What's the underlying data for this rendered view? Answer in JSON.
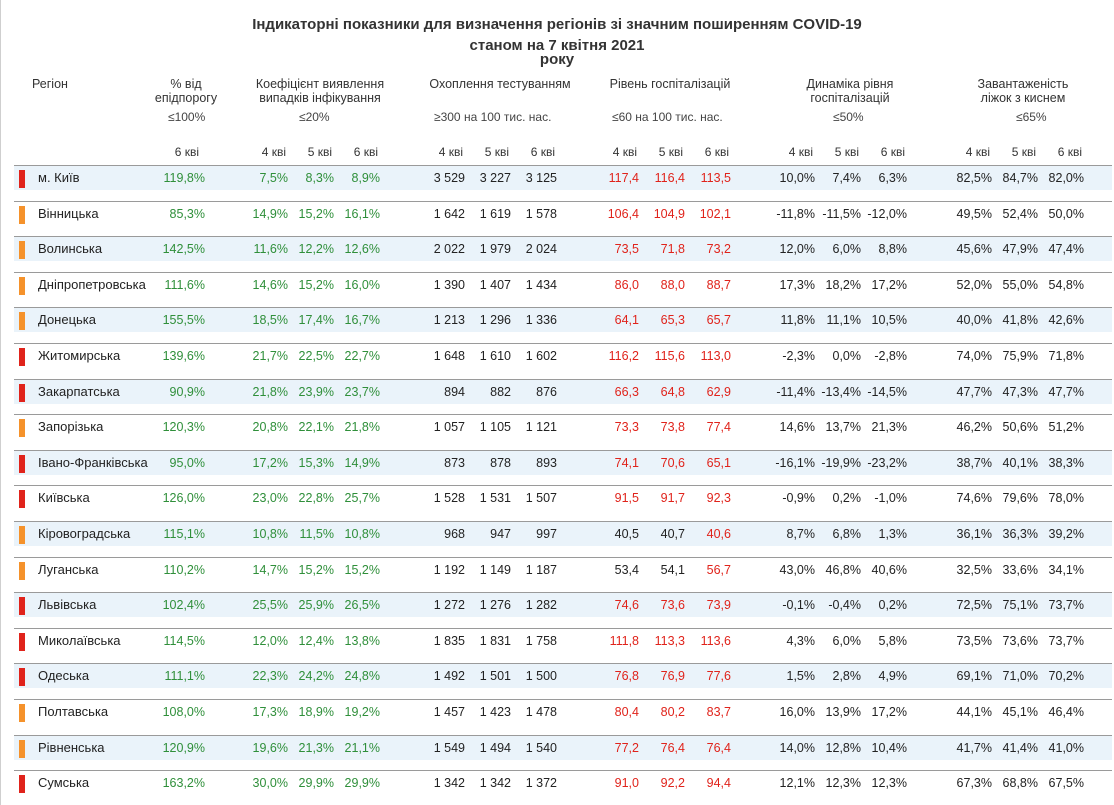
{
  "title": {
    "line1": "Індикаторні показники для визначення регіонів зі значним поширенням COVID-19",
    "line2": "станом на 7 квітня 2021",
    "line3": "року"
  },
  "colors": {
    "red": "#e0231b",
    "orange": "#f5922b",
    "green": "#2f8f3a",
    "dark": "#222222",
    "tint": "#eaf3fa",
    "hosp_ok": "#222222",
    "hosp_over": "#e0231b"
  },
  "header": {
    "region": "Регіон",
    "col_pct": {
      "l1": "% від",
      "l2": "епідпорогу",
      "threshold": "≤100%",
      "sub": [
        "6 кві"
      ]
    },
    "col_detect": {
      "l1": "Коефіцієнт виявлення",
      "l2": "випадків інфікування",
      "threshold": "≤20%",
      "sub": [
        "4 кві",
        "5 кві",
        "6 кві"
      ]
    },
    "col_test": {
      "l1": "Охоплення тестуванням",
      "l2": "",
      "threshold": "≥300 на 100 тис. нас.",
      "sub": [
        "4 кві",
        "5 кві",
        "6 кві"
      ]
    },
    "col_hosp": {
      "l1": "Рівень госпіталізацій",
      "l2": "",
      "threshold": "≤60 на 100 тис. нас.",
      "sub": [
        "4 кві",
        "5 кві",
        "6 кві"
      ]
    },
    "col_dyn": {
      "l1": "Динаміка рівня",
      "l2": "госпіталізацій",
      "threshold": "≤50%",
      "sub": [
        "4 кві",
        "5 кві",
        "6 кві"
      ]
    },
    "col_beds": {
      "l1": "Завантаженість",
      "l2": "ліжок з киснем",
      "threshold": "≤65%",
      "sub": [
        "4 кві",
        "5 кві",
        "6 кві"
      ]
    }
  },
  "chart_data": {
    "type": "table",
    "title": "Індикаторні показники для визначення регіонів зі значним поширенням COVID-19 станом на 7 квітня 2021 року",
    "rows": [
      {
        "region": "м. Київ",
        "marker": "red",
        "pct": "119,8%",
        "detect": [
          "7,5%",
          "8,3%",
          "8,9%"
        ],
        "test": [
          "3 529",
          "3 227",
          "3 125"
        ],
        "hosp": [
          "117,4",
          "116,4",
          "113,5"
        ],
        "hosp_over": [
          true,
          true,
          true
        ],
        "dyn": [
          "10,0%",
          "7,4%",
          "6,3%"
        ],
        "beds": [
          "82,5%",
          "84,7%",
          "82,0%"
        ]
      },
      {
        "region": "Вінницька",
        "marker": "orange",
        "pct": "85,3%",
        "detect": [
          "14,9%",
          "15,2%",
          "16,1%"
        ],
        "test": [
          "1 642",
          "1 619",
          "1 578"
        ],
        "hosp": [
          "106,4",
          "104,9",
          "102,1"
        ],
        "hosp_over": [
          true,
          true,
          true
        ],
        "dyn": [
          "-11,8%",
          "-11,5%",
          "-12,0%"
        ],
        "beds": [
          "49,5%",
          "52,4%",
          "50,0%"
        ]
      },
      {
        "region": "Волинська",
        "marker": "orange",
        "pct": "142,5%",
        "detect": [
          "11,6%",
          "12,2%",
          "12,6%"
        ],
        "test": [
          "2 022",
          "1 979",
          "2 024"
        ],
        "hosp": [
          "73,5",
          "71,8",
          "73,2"
        ],
        "hosp_over": [
          true,
          true,
          true
        ],
        "dyn": [
          "12,0%",
          "6,0%",
          "8,8%"
        ],
        "beds": [
          "45,6%",
          "47,9%",
          "47,4%"
        ]
      },
      {
        "region": "Дніпропетровська",
        "marker": "orange",
        "pct": "111,6%",
        "detect": [
          "14,6%",
          "15,2%",
          "16,0%"
        ],
        "test": [
          "1 390",
          "1 407",
          "1 434"
        ],
        "hosp": [
          "86,0",
          "88,0",
          "88,7"
        ],
        "hosp_over": [
          true,
          true,
          true
        ],
        "dyn": [
          "17,3%",
          "18,2%",
          "17,2%"
        ],
        "beds": [
          "52,0%",
          "55,0%",
          "54,8%"
        ]
      },
      {
        "region": "Донецька",
        "marker": "orange",
        "pct": "155,5%",
        "detect": [
          "18,5%",
          "17,4%",
          "16,7%"
        ],
        "test": [
          "1 213",
          "1 296",
          "1 336"
        ],
        "hosp": [
          "64,1",
          "65,3",
          "65,7"
        ],
        "hosp_over": [
          true,
          true,
          true
        ],
        "dyn": [
          "11,8%",
          "11,1%",
          "10,5%"
        ],
        "beds": [
          "40,0%",
          "41,8%",
          "42,6%"
        ]
      },
      {
        "region": "Житомирська",
        "marker": "red",
        "pct": "139,6%",
        "detect": [
          "21,7%",
          "22,5%",
          "22,7%"
        ],
        "test": [
          "1 648",
          "1 610",
          "1 602"
        ],
        "hosp": [
          "116,2",
          "115,6",
          "113,0"
        ],
        "hosp_over": [
          true,
          true,
          true
        ],
        "dyn": [
          "-2,3%",
          "0,0%",
          "-2,8%"
        ],
        "beds": [
          "74,0%",
          "75,9%",
          "71,8%"
        ]
      },
      {
        "region": "Закарпатська",
        "marker": "red",
        "pct": "90,9%",
        "detect": [
          "21,8%",
          "23,9%",
          "23,7%"
        ],
        "test": [
          "894",
          "882",
          "876"
        ],
        "hosp": [
          "66,3",
          "64,8",
          "62,9"
        ],
        "hosp_over": [
          true,
          true,
          true
        ],
        "dyn": [
          "-11,4%",
          "-13,4%",
          "-14,5%"
        ],
        "beds": [
          "47,7%",
          "47,3%",
          "47,7%"
        ]
      },
      {
        "region": "Запорізька",
        "marker": "orange",
        "pct": "120,3%",
        "detect": [
          "20,8%",
          "22,1%",
          "21,8%"
        ],
        "test": [
          "1 057",
          "1 105",
          "1 121"
        ],
        "hosp": [
          "73,3",
          "73,8",
          "77,4"
        ],
        "hosp_over": [
          true,
          true,
          true
        ],
        "dyn": [
          "14,6%",
          "13,7%",
          "21,3%"
        ],
        "beds": [
          "46,2%",
          "50,6%",
          "51,2%"
        ]
      },
      {
        "region": "Івано-Франківська",
        "marker": "red",
        "pct": "95,0%",
        "detect": [
          "17,2%",
          "15,3%",
          "14,9%"
        ],
        "test": [
          "873",
          "878",
          "893"
        ],
        "hosp": [
          "74,1",
          "70,6",
          "65,1"
        ],
        "hosp_over": [
          true,
          true,
          true
        ],
        "dyn": [
          "-16,1%",
          "-19,9%",
          "-23,2%"
        ],
        "beds": [
          "38,7%",
          "40,1%",
          "38,3%"
        ]
      },
      {
        "region": "Київська",
        "marker": "red",
        "pct": "126,0%",
        "detect": [
          "23,0%",
          "22,8%",
          "25,7%"
        ],
        "test": [
          "1 528",
          "1 531",
          "1 507"
        ],
        "hosp": [
          "91,5",
          "91,7",
          "92,3"
        ],
        "hosp_over": [
          true,
          true,
          true
        ],
        "dyn": [
          "-0,9%",
          "0,2%",
          "-1,0%"
        ],
        "beds": [
          "74,6%",
          "79,6%",
          "78,0%"
        ]
      },
      {
        "region": "Кіровоградська",
        "marker": "orange",
        "pct": "115,1%",
        "detect": [
          "10,8%",
          "11,5%",
          "10,8%"
        ],
        "test": [
          "968",
          "947",
          "997"
        ],
        "hosp": [
          "40,5",
          "40,7",
          "40,6"
        ],
        "hosp_over": [
          false,
          false,
          true
        ],
        "dyn": [
          "8,7%",
          "6,8%",
          "1,3%"
        ],
        "beds": [
          "36,1%",
          "36,3%",
          "39,2%"
        ]
      },
      {
        "region": "Луганська",
        "marker": "orange",
        "pct": "110,2%",
        "detect": [
          "14,7%",
          "15,2%",
          "15,2%"
        ],
        "test": [
          "1 192",
          "1 149",
          "1 187"
        ],
        "hosp": [
          "53,4",
          "54,1",
          "56,7"
        ],
        "hosp_over": [
          false,
          false,
          true
        ],
        "dyn": [
          "43,0%",
          "46,8%",
          "40,6%"
        ],
        "beds": [
          "32,5%",
          "33,6%",
          "34,1%"
        ]
      },
      {
        "region": "Львівська",
        "marker": "red",
        "pct": "102,4%",
        "detect": [
          "25,5%",
          "25,9%",
          "26,5%"
        ],
        "test": [
          "1 272",
          "1 276",
          "1 282"
        ],
        "hosp": [
          "74,6",
          "73,6",
          "73,9"
        ],
        "hosp_over": [
          true,
          true,
          true
        ],
        "dyn": [
          "-0,1%",
          "-0,4%",
          "0,2%"
        ],
        "beds": [
          "72,5%",
          "75,1%",
          "73,7%"
        ]
      },
      {
        "region": "Миколаївська",
        "marker": "red",
        "pct": "114,5%",
        "detect": [
          "12,0%",
          "12,4%",
          "13,8%"
        ],
        "test": [
          "1 835",
          "1 831",
          "1 758"
        ],
        "hosp": [
          "111,8",
          "113,3",
          "113,6"
        ],
        "hosp_over": [
          true,
          true,
          true
        ],
        "dyn": [
          "4,3%",
          "6,0%",
          "5,8%"
        ],
        "beds": [
          "73,5%",
          "73,6%",
          "73,7%"
        ]
      },
      {
        "region": "Одеська",
        "marker": "red",
        "pct": "111,1%",
        "detect": [
          "22,3%",
          "24,2%",
          "24,8%"
        ],
        "test": [
          "1 492",
          "1 501",
          "1 500"
        ],
        "hosp": [
          "76,8",
          "76,9",
          "77,6"
        ],
        "hosp_over": [
          true,
          true,
          true
        ],
        "dyn": [
          "1,5%",
          "2,8%",
          "4,9%"
        ],
        "beds": [
          "69,1%",
          "71,0%",
          "70,2%"
        ]
      },
      {
        "region": "Полтавська",
        "marker": "orange",
        "pct": "108,0%",
        "detect": [
          "17,3%",
          "18,9%",
          "19,2%"
        ],
        "test": [
          "1 457",
          "1 423",
          "1 478"
        ],
        "hosp": [
          "80,4",
          "80,2",
          "83,7"
        ],
        "hosp_over": [
          true,
          true,
          true
        ],
        "dyn": [
          "16,0%",
          "13,9%",
          "17,2%"
        ],
        "beds": [
          "44,1%",
          "45,1%",
          "46,4%"
        ]
      },
      {
        "region": "Рівненська",
        "marker": "orange",
        "pct": "120,9%",
        "detect": [
          "19,6%",
          "21,3%",
          "21,1%"
        ],
        "test": [
          "1 549",
          "1 494",
          "1 540"
        ],
        "hosp": [
          "77,2",
          "76,4",
          "76,4"
        ],
        "hosp_over": [
          true,
          true,
          true
        ],
        "dyn": [
          "14,0%",
          "12,8%",
          "10,4%"
        ],
        "beds": [
          "41,7%",
          "41,4%",
          "41,0%"
        ]
      },
      {
        "region": "Сумська",
        "marker": "red",
        "pct": "163,2%",
        "detect": [
          "30,0%",
          "29,9%",
          "29,9%"
        ],
        "test": [
          "1 342",
          "1 342",
          "1 372"
        ],
        "hosp": [
          "91,0",
          "92,2",
          "94,4"
        ],
        "hosp_over": [
          true,
          true,
          true
        ],
        "dyn": [
          "12,1%",
          "12,3%",
          "12,3%"
        ],
        "beds": [
          "67,3%",
          "68,8%",
          "67,5%"
        ]
      }
    ]
  }
}
